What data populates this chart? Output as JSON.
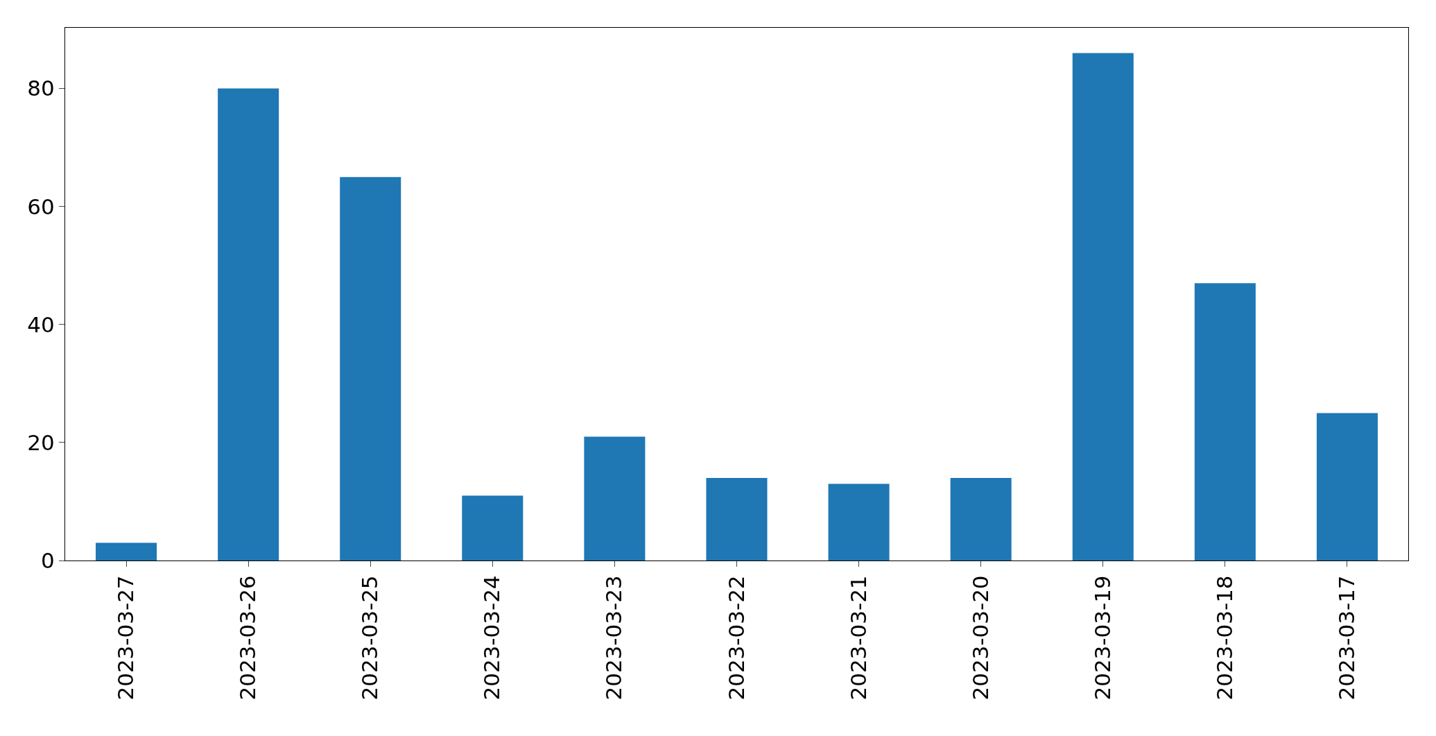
{
  "chart_data": {
    "type": "bar",
    "categories": [
      "2023-03-27",
      "2023-03-26",
      "2023-03-25",
      "2023-03-24",
      "2023-03-23",
      "2023-03-22",
      "2023-03-21",
      "2023-03-20",
      "2023-03-19",
      "2023-03-18",
      "2023-03-17"
    ],
    "values": [
      3,
      80,
      65,
      11,
      21,
      14,
      13,
      14,
      86,
      47,
      25
    ],
    "color": "#1f77b4",
    "ylim": [
      0,
      90.3
    ],
    "yticks": [
      0,
      20,
      40,
      60,
      80
    ]
  }
}
